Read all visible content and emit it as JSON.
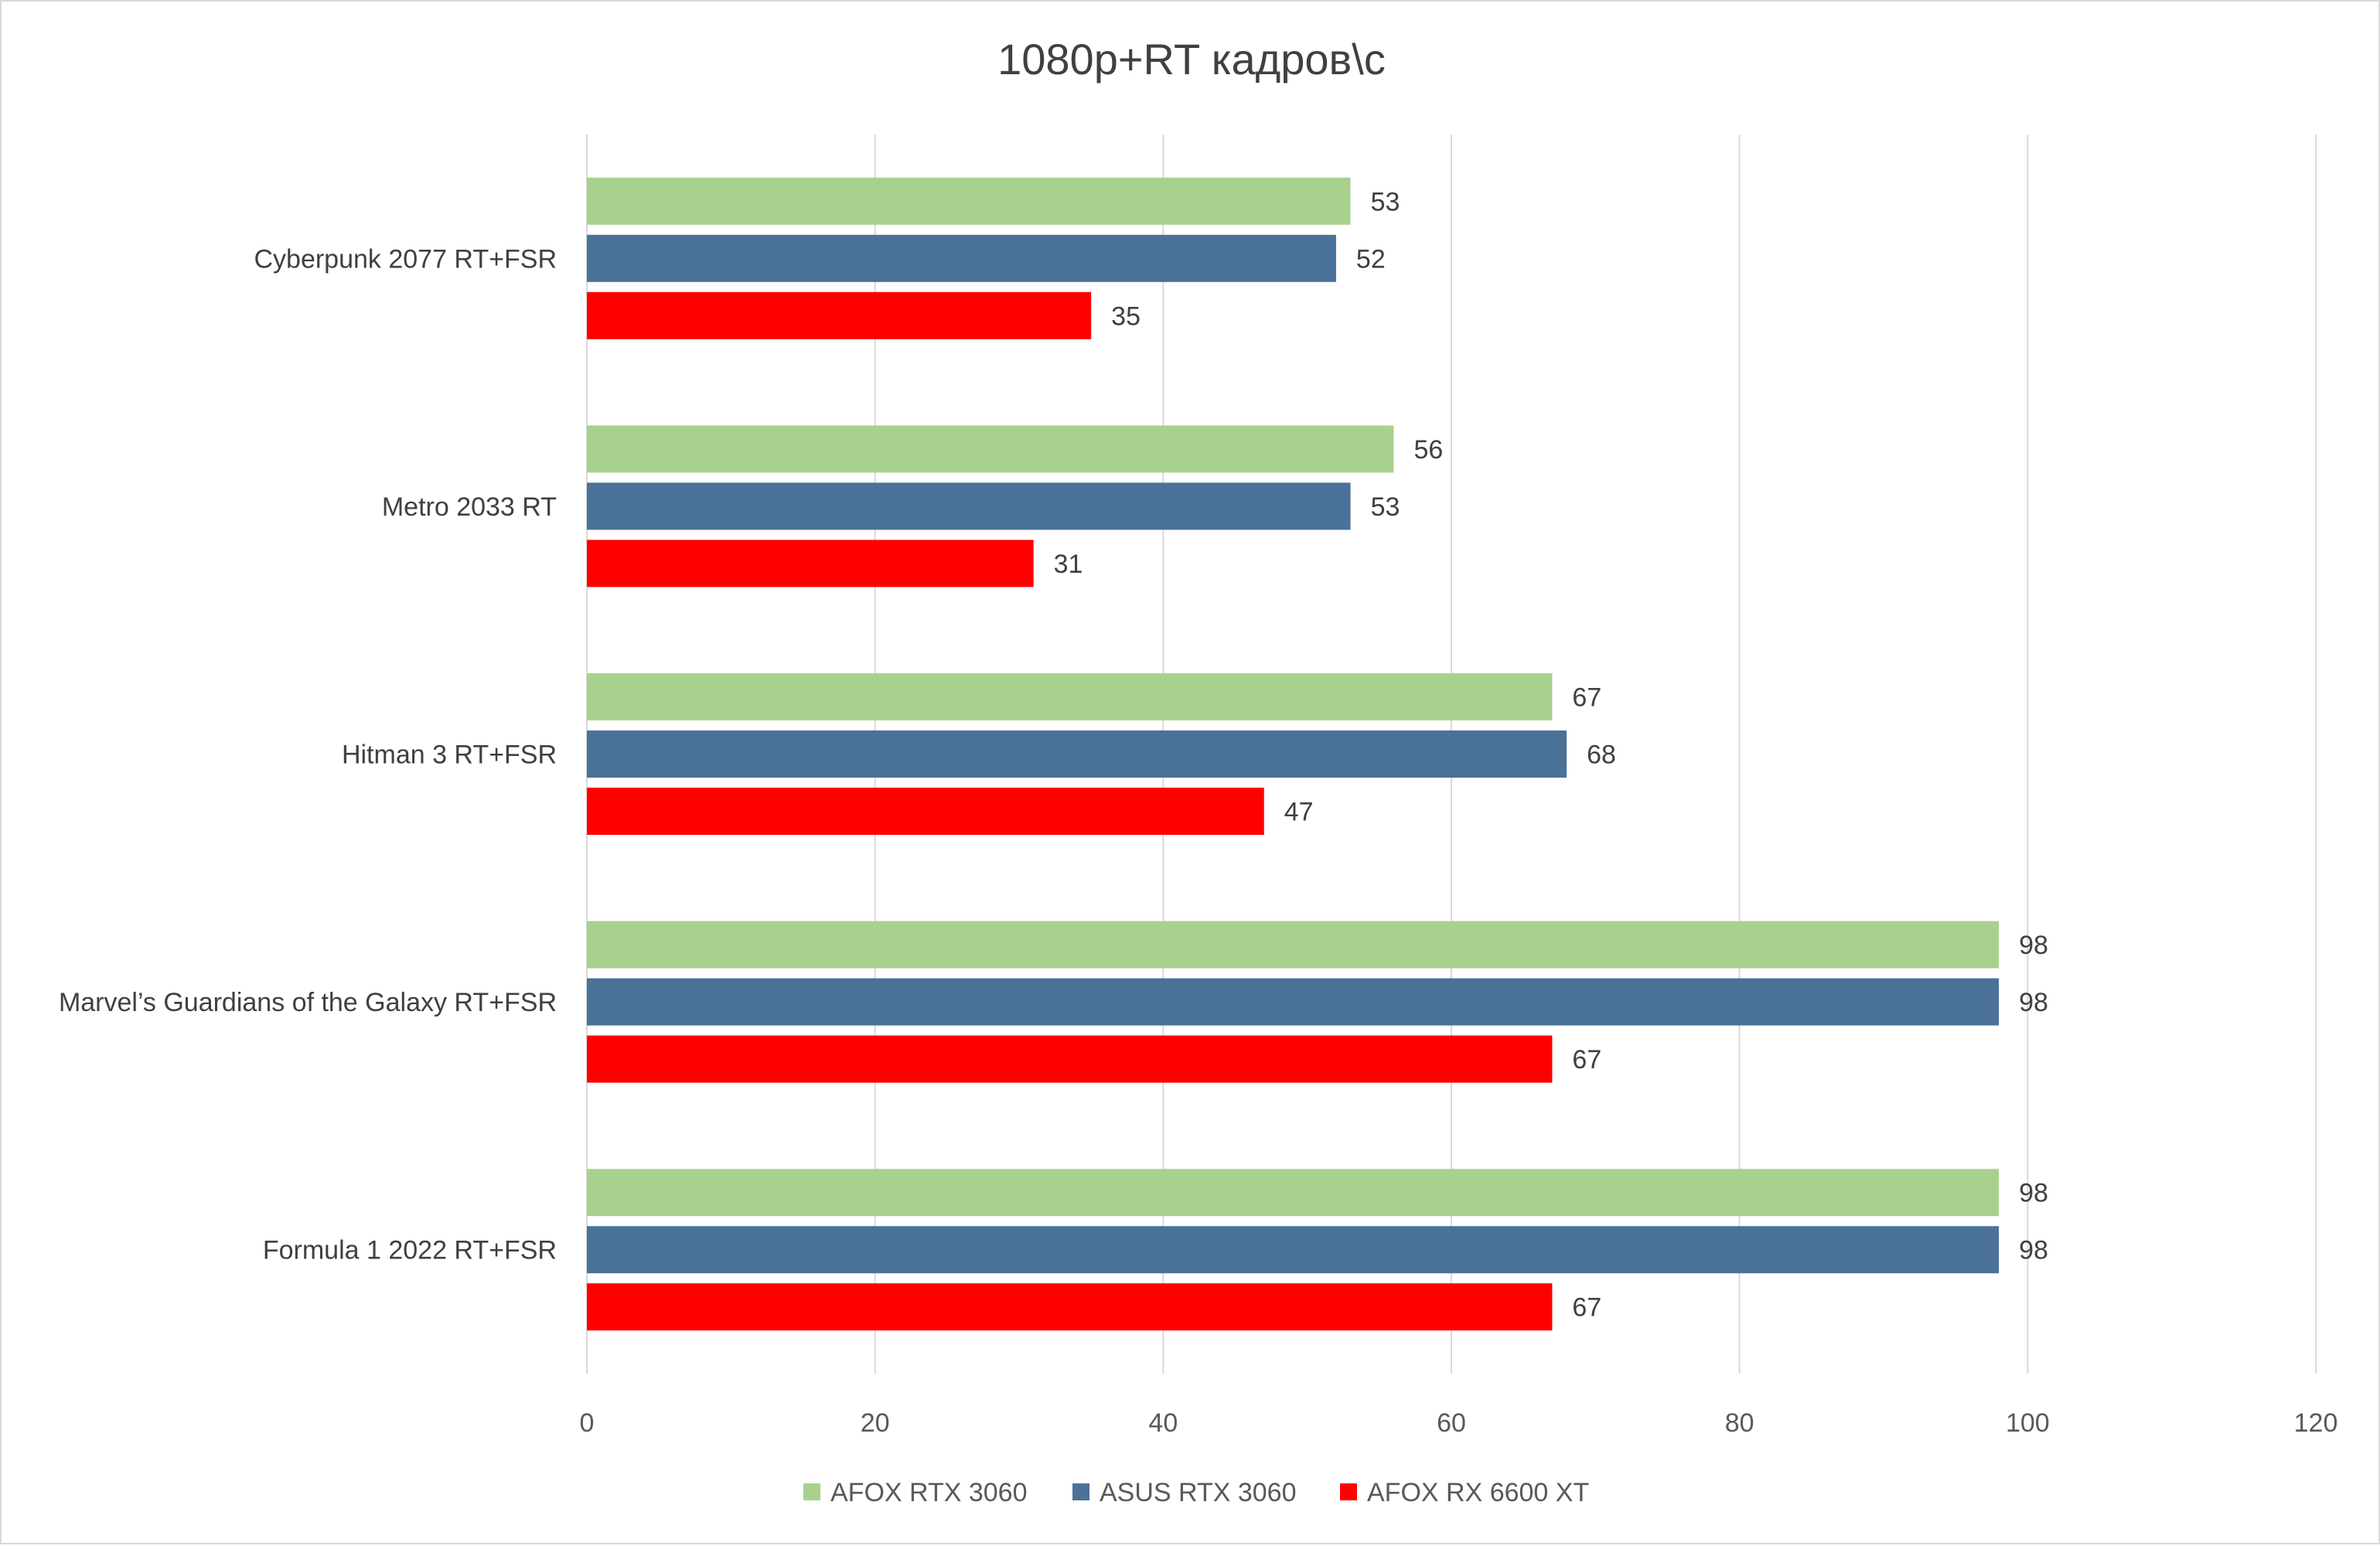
{
  "chart_data": {
    "type": "bar",
    "orientation": "horizontal",
    "title": "1080p+RT кадров\\с",
    "xlabel": "",
    "ylabel": "",
    "xlim": [
      0,
      120
    ],
    "x_ticks": [
      "0",
      "20",
      "40",
      "60",
      "80",
      "100",
      "120"
    ],
    "grid": "vertical",
    "legend_position": "bottom",
    "data_labels": true,
    "categories": [
      "Cyberpunk 2077 RT+FSR",
      "Metro 2033 RT",
      "Hitman 3 RT+FSR",
      "Marvel’s Guardians of the Galaxy RT+FSR",
      "Formula 1 2022 RT+FSR"
    ],
    "series": [
      {
        "name": "AFOX RTX 3060",
        "color": "#a9d18e",
        "values": [
          53,
          56,
          67,
          98,
          98
        ]
      },
      {
        "name": "ASUS RTX 3060",
        "color": "#4a7299",
        "values": [
          52,
          53,
          68,
          98,
          98
        ]
      },
      {
        "name": "AFOX RX 6600 XT",
        "color": "#ff0000",
        "values": [
          35,
          31,
          47,
          67,
          67
        ]
      }
    ]
  }
}
